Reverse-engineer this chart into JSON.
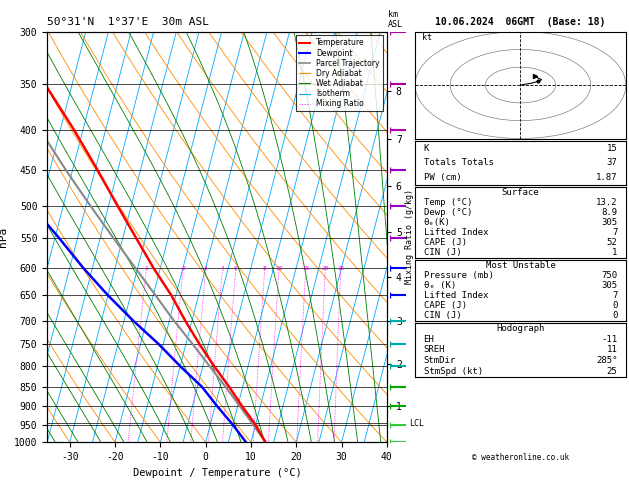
{
  "title_left": "50°31'N  1°37'E  30m ASL",
  "title_right": "10.06.2024  06GMT  (Base: 18)",
  "xlabel": "Dewpoint / Temperature (°C)",
  "ylabel_left": "hPa",
  "pressure_ticks": [
    300,
    350,
    400,
    450,
    500,
    550,
    600,
    650,
    700,
    750,
    800,
    850,
    900,
    950,
    1000
  ],
  "km_ticks": [
    8,
    7,
    6,
    5,
    4,
    3,
    2,
    1
  ],
  "km_pressures": [
    357,
    411,
    472,
    540,
    616,
    701,
    795,
    899
  ],
  "lcl_pressure": 946,
  "temp_profile_p": [
    1000,
    950,
    900,
    850,
    800,
    750,
    700,
    650,
    600,
    550,
    500,
    450,
    400,
    350,
    300
  ],
  "temp_profile_t": [
    13.2,
    10.0,
    6.0,
    2.0,
    -2.5,
    -7.0,
    -11.5,
    -16.0,
    -21.5,
    -27.0,
    -33.0,
    -39.5,
    -47.0,
    -56.0,
    -63.0
  ],
  "dewp_profile_p": [
    1000,
    950,
    900,
    850,
    800,
    750,
    700,
    650,
    600,
    550,
    500,
    450,
    400,
    350,
    300
  ],
  "dewp_profile_t": [
    8.9,
    5.0,
    0.5,
    -4.0,
    -10.0,
    -16.0,
    -23.0,
    -30.0,
    -37.0,
    -44.0,
    -52.0,
    -57.0,
    -62.0,
    -67.0,
    -72.0
  ],
  "parcel_profile_p": [
    1000,
    950,
    900,
    850,
    800,
    750,
    700,
    650,
    600,
    550,
    500,
    450,
    400,
    350,
    300
  ],
  "parcel_profile_t": [
    13.2,
    9.5,
    5.5,
    1.2,
    -3.5,
    -8.5,
    -14.0,
    -19.5,
    -25.5,
    -32.0,
    -39.0,
    -46.5,
    -54.5,
    -63.5,
    -72.5
  ],
  "temp_color": "#FF0000",
  "dewp_color": "#0000FF",
  "parcel_color": "#888888",
  "dry_adiabat_color": "#FF8C00",
  "wet_adiabat_color": "#008000",
  "isotherm_color": "#00AAFF",
  "mixing_ratio_color": "#FF00FF",
  "background_color": "#FFFFFF",
  "xlim": [
    -35,
    40
  ],
  "skew_factor": 45,
  "mixing_ratio_values": [
    1,
    2,
    3,
    4,
    5,
    8,
    10,
    15,
    20,
    25
  ],
  "stats_K": 15,
  "stats_TT": 37,
  "stats_PW": 1.87,
  "stats_surf_temp": 13.2,
  "stats_surf_dewp": 8.9,
  "stats_surf_theta_e": 305,
  "stats_surf_li": 7,
  "stats_surf_cape": 52,
  "stats_surf_cin": 1,
  "stats_mu_pres": 750,
  "stats_mu_theta_e": 305,
  "stats_mu_li": 7,
  "stats_mu_cape": 0,
  "stats_mu_cin": 0,
  "stats_eh": -11,
  "stats_sreh": 11,
  "stats_stmdir": "285°",
  "stats_stmspd": 25,
  "copyright": "© weatheronline.co.uk",
  "wind_level_colors": {
    "300": "#AA00AA",
    "350": "#AA00AA",
    "400": "#AA00AA",
    "450": "#9900BB",
    "500": "#9900BB",
    "550": "#9900BB",
    "600": "#0000FF",
    "650": "#0000FF",
    "700": "#00AAAA",
    "750": "#00AAAA",
    "800": "#00AAAA",
    "850": "#00AA00",
    "900": "#00AA00",
    "950": "#33CC33",
    "1000": "#33CC33"
  }
}
